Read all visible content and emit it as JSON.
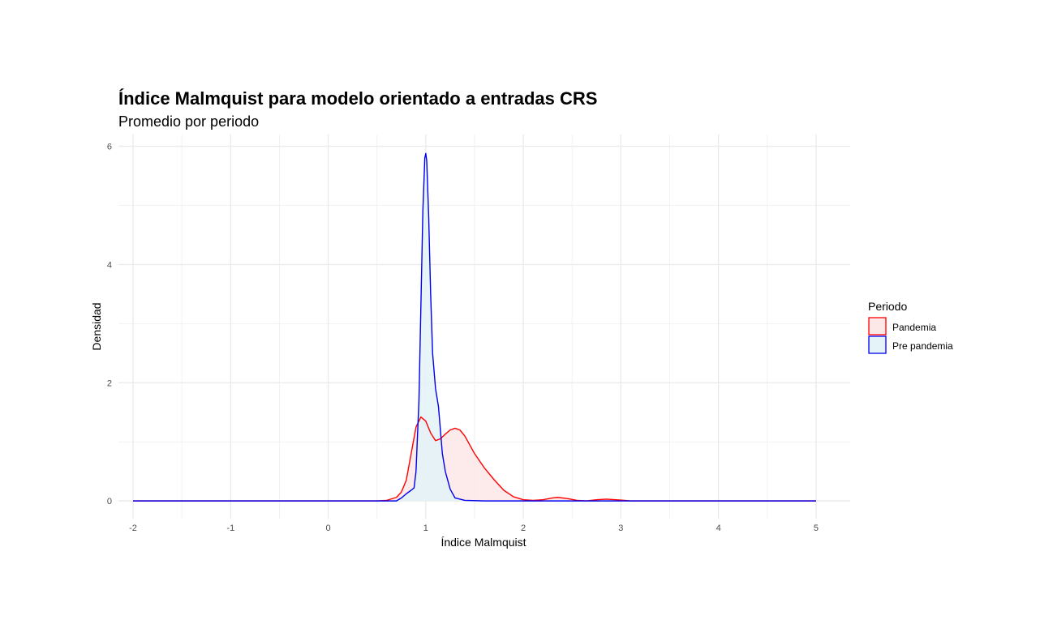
{
  "chart_data": {
    "type": "area",
    "title": "Índice Malmquist para modelo orientado a entradas CRS",
    "subtitle": "Promedio por periodo",
    "xlabel": "Índice Malmquist",
    "ylabel": "Densidad",
    "xlim": [
      -2.15,
      5.35
    ],
    "ylim": [
      -0.3,
      6.2
    ],
    "x_ticks": [
      -2,
      -1,
      0,
      1,
      2,
      3,
      4,
      5
    ],
    "x_tick_labels": [
      "-2",
      "-1",
      "0",
      "1",
      "2",
      "3",
      "4",
      "5"
    ],
    "y_ticks": [
      0,
      2,
      4,
      6
    ],
    "y_tick_labels": [
      "0",
      "2",
      "4",
      "6"
    ],
    "grid": true,
    "legend": {
      "title": "Periodo",
      "position": "right"
    },
    "series": [
      {
        "name": "Pandemia",
        "color": "#ff0000",
        "fill": "#fde8e8",
        "x": [
          -2,
          0.5,
          0.6,
          0.7,
          0.75,
          0.8,
          0.85,
          0.9,
          0.95,
          1.0,
          1.05,
          1.1,
          1.15,
          1.2,
          1.25,
          1.3,
          1.35,
          1.4,
          1.45,
          1.5,
          1.6,
          1.7,
          1.8,
          1.9,
          2.0,
          2.1,
          2.2,
          2.3,
          2.35,
          2.45,
          2.55,
          2.65,
          2.75,
          2.85,
          2.95,
          3.1,
          3.3,
          5
        ],
        "y": [
          0,
          0,
          0.01,
          0.06,
          0.15,
          0.35,
          0.8,
          1.25,
          1.42,
          1.35,
          1.15,
          1.02,
          1.05,
          1.13,
          1.2,
          1.23,
          1.2,
          1.1,
          0.95,
          0.8,
          0.56,
          0.36,
          0.18,
          0.07,
          0.02,
          0.01,
          0.02,
          0.05,
          0.06,
          0.04,
          0.01,
          0.0,
          0.02,
          0.03,
          0.02,
          0.0,
          0,
          0
        ]
      },
      {
        "name": "Pre pandemia",
        "color": "#0000ee",
        "fill": "#e3f3f8",
        "x": [
          -2,
          0.7,
          0.72,
          0.75,
          0.8,
          0.85,
          0.88,
          0.9,
          0.93,
          0.95,
          0.97,
          0.99,
          1.0,
          1.01,
          1.03,
          1.05,
          1.07,
          1.1,
          1.13,
          1.15,
          1.17,
          1.2,
          1.25,
          1.3,
          1.4,
          1.6,
          5
        ],
        "y": [
          0,
          0,
          0.02,
          0.05,
          0.12,
          0.18,
          0.22,
          0.5,
          1.7,
          3.3,
          4.9,
          5.8,
          5.88,
          5.75,
          4.8,
          3.5,
          2.5,
          1.9,
          1.6,
          1.2,
          0.8,
          0.5,
          0.2,
          0.05,
          0.01,
          0,
          0
        ]
      }
    ]
  }
}
